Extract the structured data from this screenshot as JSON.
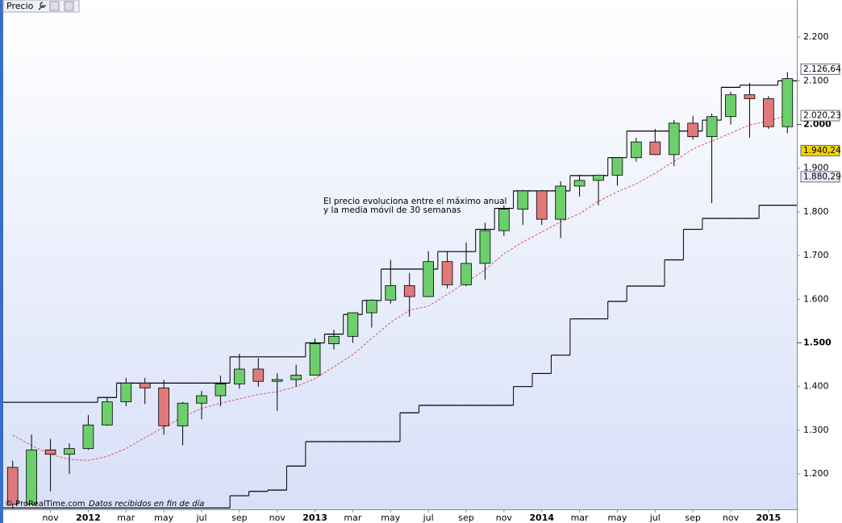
{
  "header": {
    "title": "Precio"
  },
  "footer": {
    "copyright": "© ProRealTime.com",
    "note": "Datos recibidos en fin de día"
  },
  "chart_data": {
    "type": "candlestick",
    "annotations": [
      "El precio evoluciona entre el máximo anual",
      "y la media móvil de 30 semanas"
    ],
    "categories": [
      null,
      null,
      "nov",
      null,
      "2012",
      null,
      "mar",
      null,
      "may",
      null,
      "jul",
      null,
      "sep",
      null,
      "nov",
      null,
      "2013",
      null,
      "mar",
      null,
      "may",
      null,
      "jul",
      null,
      "sep",
      null,
      "nov",
      null,
      "2014",
      null,
      "mar",
      null,
      "may",
      null,
      "jul",
      null,
      "sep",
      null,
      "nov",
      null,
      "2015",
      null
    ],
    "open": [
      1215,
      1130,
      1255,
      1245,
      1258,
      1312,
      1365,
      1408,
      1397,
      1310,
      1362,
      1379,
      1406,
      1440,
      1412,
      1416,
      1426,
      1498,
      1515,
      1569,
      1598,
      1631,
      1606,
      1686,
      1633,
      1682,
      1757,
      1806,
      1848,
      1783,
      1859,
      1872,
      1884,
      1924,
      1960,
      1931,
      2003,
      1972,
      2018,
      2068,
      2059,
      1995
    ],
    "high": [
      1230,
      1290,
      1280,
      1270,
      1335,
      1375,
      1420,
      1420,
      1415,
      1365,
      1390,
      1425,
      1475,
      1465,
      1430,
      1450,
      1510,
      1530,
      1570,
      1600,
      1690,
      1660,
      1710,
      1710,
      1730,
      1775,
      1815,
      1850,
      1850,
      1870,
      1885,
      1885,
      1925,
      1970,
      1990,
      2010,
      2020,
      2025,
      2075,
      2095,
      2065,
      2120
    ],
    "low": [
      1120,
      1140,
      1160,
      1200,
      1255,
      1310,
      1355,
      1360,
      1290,
      1265,
      1325,
      1355,
      1395,
      1400,
      1345,
      1400,
      1425,
      1485,
      1500,
      1535,
      1590,
      1560,
      1605,
      1625,
      1630,
      1645,
      1745,
      1770,
      1770,
      1740,
      1835,
      1815,
      1860,
      1915,
      1930,
      1905,
      1965,
      1820,
      2000,
      1970,
      1990,
      1980
    ],
    "close": [
      1130,
      1255,
      1245,
      1258,
      1312,
      1365,
      1408,
      1397,
      1310,
      1362,
      1379,
      1406,
      1440,
      1412,
      1416,
      1426,
      1498,
      1515,
      1569,
      1598,
      1631,
      1606,
      1686,
      1633,
      1682,
      1757,
      1806,
      1848,
      1783,
      1859,
      1872,
      1884,
      1924,
      1960,
      1931,
      2003,
      1972,
      2018,
      2068,
      2059,
      1995,
      2105
    ],
    "up_color": "#6ccf6c",
    "down_color": "#e07a7a",
    "lines": [
      {
        "style": "dashed",
        "color": "#e05555",
        "values": [
          1289,
          1265,
          1245,
          1233,
          1231,
          1240,
          1258,
          1283,
          1307,
          1330,
          1350,
          1362,
          1372,
          1382,
          1388,
          1400,
          1418,
          1445,
          1473,
          1510,
          1547,
          1575,
          1584,
          1611,
          1639,
          1667,
          1704,
          1731,
          1754,
          1777,
          1796,
          1824,
          1846,
          1864,
          1888,
          1916,
          1944,
          1962,
          1980,
          1999,
          2008,
          2021
        ]
      },
      {
        "style": "step",
        "color": "#000000",
        "values": [
          1364,
          1364,
          1364,
          1364,
          1364,
          1375,
          1408,
          1408,
          1408,
          1408,
          1408,
          1408,
          1468,
          1468,
          1468,
          1468,
          1500,
          1520,
          1565,
          1597,
          1669,
          1669,
          1669,
          1709,
          1709,
          1760,
          1808,
          1848,
          1848,
          1848,
          1883,
          1883,
          1924,
          1985,
          1985,
          1985,
          1985,
          2010,
          2085,
          2090,
          2090,
          2100
        ]
      },
      {
        "style": "step",
        "color": "#000000",
        "values": [
          1122,
          1122,
          1122,
          1122,
          1122,
          1122,
          1122,
          1122,
          1122,
          1122,
          1122,
          1122,
          1150,
          1160,
          1163,
          1218,
          1274,
          1274,
          1274,
          1274,
          1274,
          1340,
          1357,
          1357,
          1357,
          1357,
          1357,
          1400,
          1430,
          1472,
          1555,
          1555,
          1595,
          1630,
          1630,
          1690,
          1760,
          1785,
          1785,
          1785,
          1815,
          1815
        ]
      }
    ],
    "ylim": [
      1119,
      2285
    ],
    "yticks": [
      {
        "value": 1200,
        "label": "1.200"
      },
      {
        "value": 1300,
        "label": "1.300"
      },
      {
        "value": 1400,
        "label": "1.400"
      },
      {
        "value": 1500,
        "label": "1.500"
      },
      {
        "value": 1600,
        "label": "1.600"
      },
      {
        "value": 1700,
        "label": "1.700"
      },
      {
        "value": 1800,
        "label": "1.800"
      },
      {
        "value": 1900,
        "label": "1.900"
      },
      {
        "value": 2000,
        "label": "2.000"
      },
      {
        "value": 2100,
        "label": "2.100"
      },
      {
        "value": 2200,
        "label": "2.200"
      }
    ],
    "bold_ticks": [
      1500,
      2000
    ],
    "price_labels": [
      {
        "value": 2126.64,
        "label": "2.126,64",
        "color": "#ffffff",
        "text_color": "#000000"
      },
      {
        "value": 2020.23,
        "label": "2.020,23",
        "color": "#ffffff",
        "text_color": "#d05070"
      },
      {
        "value": 1940.24,
        "label": "1.940,24",
        "color": "#f5d400",
        "text_color": "#000000"
      },
      {
        "value": 1880.29,
        "label": "1.880,29",
        "color": "#e8eef8",
        "text_color": "#000000"
      }
    ]
  }
}
